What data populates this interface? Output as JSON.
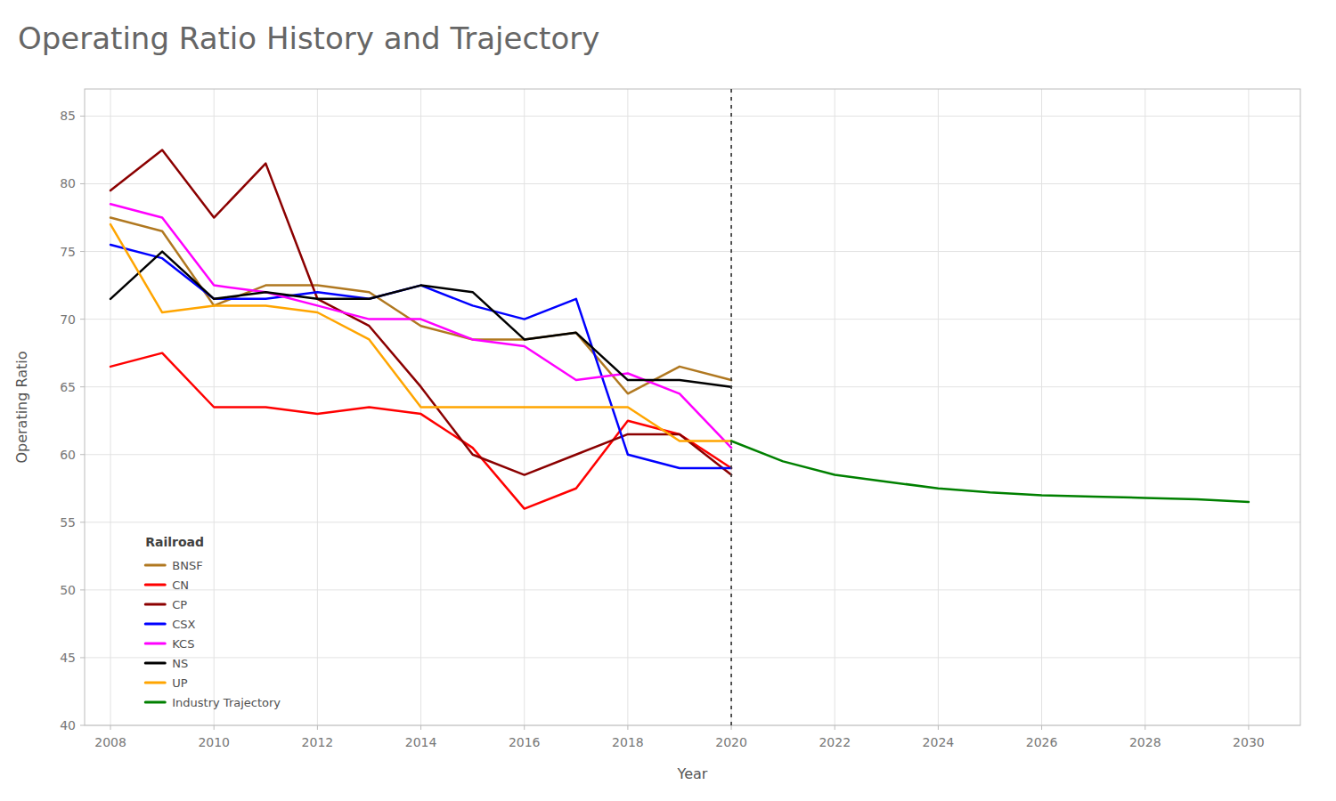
{
  "chart_data": {
    "type": "line",
    "title": "Operating Ratio History and Trajectory",
    "xlabel": "Year",
    "ylabel": "Operating Ratio",
    "legend_title": "Railroad",
    "legend": "lower left",
    "grid": true,
    "xlim": [
      2007.5,
      2031.0
    ],
    "xticks": [
      2008,
      2010,
      2012,
      2014,
      2016,
      2018,
      2020,
      2022,
      2024,
      2026,
      2028,
      2030
    ],
    "ylim": [
      40,
      87
    ],
    "yticks": [
      40,
      45,
      50,
      55,
      60,
      65,
      70,
      75,
      80,
      85
    ],
    "vline_x": 2020,
    "series": [
      {
        "name": "BNSF",
        "color": "#b07820",
        "x": [
          2008,
          2009,
          2010,
          2011,
          2012,
          2013,
          2014,
          2015,
          2016,
          2017,
          2018,
          2019,
          2020
        ],
        "values": [
          77.5,
          76.5,
          71.0,
          72.5,
          72.5,
          72.0,
          69.5,
          68.5,
          68.5,
          69.0,
          64.5,
          66.5,
          65.5
        ]
      },
      {
        "name": "CN",
        "color": "#ff0000",
        "x": [
          2008,
          2009,
          2010,
          2011,
          2012,
          2013,
          2014,
          2015,
          2016,
          2017,
          2018,
          2019,
          2020
        ],
        "values": [
          66.5,
          67.5,
          63.5,
          63.5,
          63.0,
          63.5,
          63.0,
          60.5,
          56.0,
          57.5,
          62.5,
          61.5,
          59.0
        ]
      },
      {
        "name": "CP",
        "color": "#8b0000",
        "x": [
          2008,
          2009,
          2010,
          2011,
          2012,
          2013,
          2014,
          2015,
          2016,
          2017,
          2018,
          2019,
          2020
        ],
        "values": [
          79.5,
          82.5,
          77.5,
          81.5,
          71.5,
          69.5,
          65.0,
          60.0,
          58.5,
          60.0,
          61.5,
          61.5,
          58.5
        ]
      },
      {
        "name": "CSX",
        "color": "#0000ff",
        "x": [
          2008,
          2009,
          2010,
          2011,
          2012,
          2013,
          2014,
          2015,
          2016,
          2017,
          2018,
          2019,
          2020
        ],
        "values": [
          75.5,
          74.5,
          71.5,
          71.5,
          72.0,
          71.5,
          72.5,
          71.0,
          70.0,
          71.5,
          60.0,
          59.0,
          59.0
        ]
      },
      {
        "name": "KCS",
        "color": "#ff00ff",
        "x": [
          2008,
          2009,
          2010,
          2011,
          2012,
          2013,
          2014,
          2015,
          2016,
          2017,
          2018,
          2019,
          2020
        ],
        "values": [
          78.5,
          77.5,
          72.5,
          72.0,
          71.0,
          70.0,
          70.0,
          68.5,
          68.0,
          65.5,
          66.0,
          64.5,
          60.5
        ]
      },
      {
        "name": "NS",
        "color": "#000000",
        "x": [
          2008,
          2009,
          2010,
          2011,
          2012,
          2013,
          2014,
          2015,
          2016,
          2017,
          2018,
          2019,
          2020
        ],
        "values": [
          71.5,
          75.0,
          71.5,
          72.0,
          71.5,
          71.5,
          72.5,
          72.0,
          68.5,
          69.0,
          65.5,
          65.5,
          65.0
        ]
      },
      {
        "name": "UP",
        "color": "#ffa500",
        "x": [
          2008,
          2009,
          2010,
          2011,
          2012,
          2013,
          2014,
          2015,
          2016,
          2017,
          2018,
          2019,
          2020
        ],
        "values": [
          77.0,
          70.5,
          71.0,
          71.0,
          70.5,
          68.5,
          63.5,
          63.5,
          63.5,
          63.5,
          63.5,
          61.0,
          61.0
        ]
      },
      {
        "name": "Industry Trajectory",
        "color": "#008000",
        "x": [
          2020,
          2021,
          2022,
          2023,
          2024,
          2025,
          2026,
          2027,
          2028,
          2029,
          2030
        ],
        "values": [
          61.0,
          59.5,
          58.5,
          58.0,
          57.5,
          57.2,
          57.0,
          56.9,
          56.8,
          56.7,
          56.5
        ]
      }
    ]
  }
}
